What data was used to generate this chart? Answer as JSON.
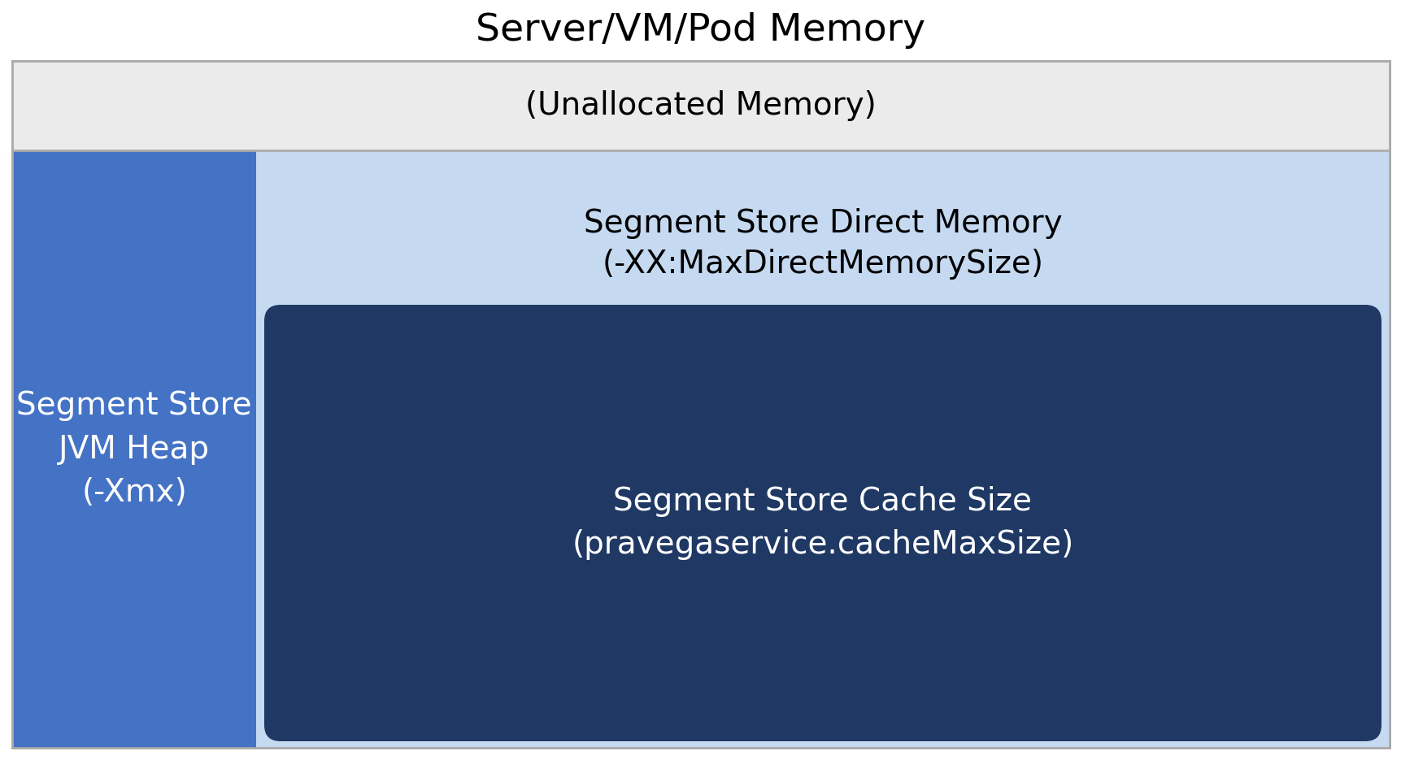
{
  "title": "Server/VM/Pod Memory",
  "title_fontsize": 34,
  "title_color": "#000000",
  "bg_color": "#ffffff",
  "outer_border_color": "#aaaaaa",
  "unallocated_label": "(Unallocated Memory)",
  "unallocated_bg": "#ebebeb",
  "unallocated_fontsize": 28,
  "jvm_label": "Segment Store\nJVM Heap\n(-Xmx)",
  "jvm_bg": "#4472c4",
  "jvm_fontsize": 28,
  "jvm_text_color": "#ffffff",
  "direct_label": "Segment Store Direct Memory\n(-XX:MaxDirectMemorySize)",
  "direct_bg": "#c5d9f1",
  "direct_fontsize": 28,
  "direct_text_color": "#000000",
  "cache_label": "Segment Store Cache Size\n(pravegaservice.cacheMaxSize)",
  "cache_bg": "#1f3864",
  "cache_fontsize": 28,
  "cache_text_color": "#ffffff",
  "fig_width": 17.24,
  "fig_height": 9.4,
  "dpi": 100
}
